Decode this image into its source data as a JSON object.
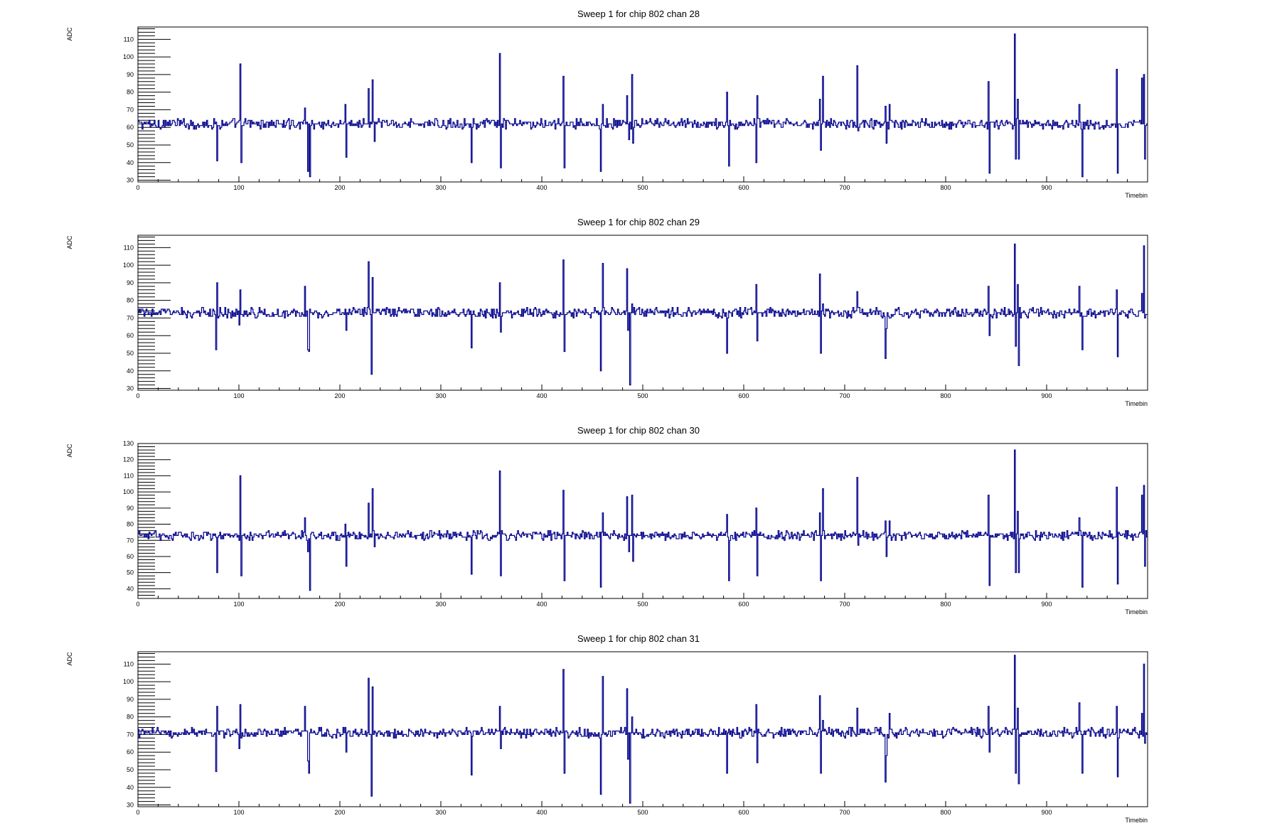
{
  "chart_data": [
    {
      "type": "line",
      "title": "Sweep 1 for chip 802 chan 28",
      "xlabel": "Timebin",
      "ylabel": "ADC",
      "xlim": [
        0,
        1000
      ],
      "ylim": [
        29,
        117
      ],
      "xticks": [
        0,
        100,
        200,
        300,
        400,
        500,
        600,
        700,
        800,
        900
      ],
      "yticks": [
        30,
        40,
        50,
        60,
        70,
        80,
        90,
        100,
        110
      ],
      "baseline": 62,
      "noise": 2.2,
      "spikes": [
        [
          78,
          41
        ],
        [
          101,
          96
        ],
        [
          102,
          40
        ],
        [
          165,
          71
        ],
        [
          168,
          35
        ],
        [
          170,
          32
        ],
        [
          205,
          73
        ],
        [
          206,
          43
        ],
        [
          228,
          82
        ],
        [
          232,
          87
        ],
        [
          234,
          52
        ],
        [
          330,
          40
        ],
        [
          358,
          102
        ],
        [
          359,
          37
        ],
        [
          421,
          89
        ],
        [
          422,
          37
        ],
        [
          458,
          35
        ],
        [
          460,
          73
        ],
        [
          484,
          78
        ],
        [
          486,
          53
        ],
        [
          489,
          90
        ],
        [
          490,
          51
        ],
        [
          583,
          80
        ],
        [
          585,
          38
        ],
        [
          612,
          40
        ],
        [
          613,
          78
        ],
        [
          675,
          76
        ],
        [
          676,
          47
        ],
        [
          678,
          89
        ],
        [
          712,
          95
        ],
        [
          713,
          58
        ],
        [
          740,
          72
        ],
        [
          741,
          51
        ],
        [
          744,
          73
        ],
        [
          842,
          86
        ],
        [
          843,
          34
        ],
        [
          868,
          113
        ],
        [
          869,
          42
        ],
        [
          871,
          76
        ],
        [
          872,
          42
        ],
        [
          932,
          73
        ],
        [
          935,
          32
        ],
        [
          969,
          93
        ],
        [
          970,
          34
        ],
        [
          994,
          88
        ],
        [
          996,
          90
        ],
        [
          997,
          42
        ]
      ],
      "grid": false,
      "legend": "none",
      "color": "#00008b"
    },
    {
      "type": "line",
      "title": "Sweep 1 for chip 802 chan 29",
      "xlabel": "Timebin",
      "ylabel": "ADC",
      "xlim": [
        0,
        1000
      ],
      "ylim": [
        29,
        117
      ],
      "xticks": [
        0,
        100,
        200,
        300,
        400,
        500,
        600,
        700,
        800,
        900
      ],
      "yticks": [
        30,
        40,
        50,
        60,
        70,
        80,
        90,
        100,
        110
      ],
      "baseline": 73,
      "noise": 2.2,
      "spikes": [
        [
          77,
          52
        ],
        [
          78,
          90
        ],
        [
          100,
          66
        ],
        [
          101,
          86
        ],
        [
          165,
          88
        ],
        [
          168,
          52
        ],
        [
          169,
          51
        ],
        [
          205,
          75
        ],
        [
          206,
          63
        ],
        [
          228,
          102
        ],
        [
          231,
          38
        ],
        [
          232,
          93
        ],
        [
          330,
          53
        ],
        [
          358,
          90
        ],
        [
          359,
          62
        ],
        [
          421,
          103
        ],
        [
          422,
          51
        ],
        [
          458,
          40
        ],
        [
          460,
          101
        ],
        [
          484,
          98
        ],
        [
          485,
          63
        ],
        [
          487,
          32
        ],
        [
          489,
          78
        ],
        [
          583,
          50
        ],
        [
          585,
          74
        ],
        [
          612,
          89
        ],
        [
          613,
          57
        ],
        [
          675,
          95
        ],
        [
          676,
          50
        ],
        [
          678,
          78
        ],
        [
          712,
          85
        ],
        [
          740,
          47
        ],
        [
          741,
          64
        ],
        [
          744,
          70
        ],
        [
          842,
          88
        ],
        [
          843,
          60
        ],
        [
          868,
          112
        ],
        [
          869,
          54
        ],
        [
          871,
          89
        ],
        [
          872,
          43
        ],
        [
          932,
          88
        ],
        [
          935,
          52
        ],
        [
          969,
          86
        ],
        [
          970,
          48
        ],
        [
          994,
          84
        ],
        [
          996,
          111
        ],
        [
          997,
          70
        ]
      ],
      "grid": false,
      "legend": "none",
      "color": "#00008b"
    },
    {
      "type": "line",
      "title": "Sweep 1 for chip 802 chan 30",
      "xlabel": "Timebin",
      "ylabel": "ADC",
      "xlim": [
        0,
        1000
      ],
      "ylim": [
        34,
        130
      ],
      "xticks": [
        0,
        100,
        200,
        300,
        400,
        500,
        600,
        700,
        800,
        900
      ],
      "yticks": [
        40,
        50,
        60,
        70,
        80,
        90,
        100,
        110,
        120,
        130
      ],
      "baseline": 73,
      "noise": 2.2,
      "spikes": [
        [
          78,
          50
        ],
        [
          101,
          110
        ],
        [
          102,
          48
        ],
        [
          165,
          84
        ],
        [
          168,
          63
        ],
        [
          170,
          39
        ],
        [
          205,
          80
        ],
        [
          206,
          54
        ],
        [
          228,
          93
        ],
        [
          232,
          102
        ],
        [
          234,
          66
        ],
        [
          330,
          49
        ],
        [
          358,
          113
        ],
        [
          359,
          48
        ],
        [
          421,
          101
        ],
        [
          422,
          45
        ],
        [
          458,
          41
        ],
        [
          460,
          87
        ],
        [
          484,
          97
        ],
        [
          486,
          63
        ],
        [
          489,
          98
        ],
        [
          490,
          57
        ],
        [
          583,
          86
        ],
        [
          585,
          45
        ],
        [
          612,
          90
        ],
        [
          613,
          48
        ],
        [
          675,
          87
        ],
        [
          676,
          45
        ],
        [
          678,
          102
        ],
        [
          712,
          109
        ],
        [
          713,
          67
        ],
        [
          740,
          82
        ],
        [
          741,
          60
        ],
        [
          744,
          82
        ],
        [
          842,
          98
        ],
        [
          843,
          42
        ],
        [
          868,
          126
        ],
        [
          869,
          50
        ],
        [
          871,
          88
        ],
        [
          872,
          50
        ],
        [
          932,
          84
        ],
        [
          935,
          41
        ],
        [
          969,
          103
        ],
        [
          970,
          43
        ],
        [
          994,
          98
        ],
        [
          996,
          104
        ],
        [
          997,
          54
        ]
      ],
      "grid": false,
      "legend": "none",
      "color": "#00008b"
    },
    {
      "type": "line",
      "title": "Sweep 1 for chip 802 chan 31",
      "xlabel": "Timebin",
      "ylabel": "ADC",
      "xlim": [
        0,
        1000
      ],
      "ylim": [
        29,
        117
      ],
      "xticks": [
        0,
        100,
        200,
        300,
        400,
        500,
        600,
        700,
        800,
        900
      ],
      "yticks": [
        30,
        40,
        50,
        60,
        70,
        80,
        90,
        100,
        110
      ],
      "baseline": 71,
      "noise": 2.2,
      "spikes": [
        [
          77,
          49
        ],
        [
          78,
          86
        ],
        [
          100,
          62
        ],
        [
          101,
          87
        ],
        [
          165,
          86
        ],
        [
          168,
          55
        ],
        [
          169,
          48
        ],
        [
          205,
          74
        ],
        [
          206,
          60
        ],
        [
          228,
          102
        ],
        [
          231,
          35
        ],
        [
          232,
          97
        ],
        [
          330,
          47
        ],
        [
          358,
          86
        ],
        [
          359,
          62
        ],
        [
          421,
          107
        ],
        [
          422,
          48
        ],
        [
          458,
          36
        ],
        [
          460,
          103
        ],
        [
          484,
          96
        ],
        [
          485,
          56
        ],
        [
          487,
          31
        ],
        [
          489,
          80
        ],
        [
          583,
          48
        ],
        [
          585,
          73
        ],
        [
          612,
          87
        ],
        [
          613,
          54
        ],
        [
          675,
          92
        ],
        [
          676,
          48
        ],
        [
          678,
          78
        ],
        [
          712,
          85
        ],
        [
          740,
          43
        ],
        [
          741,
          58
        ],
        [
          744,
          82
        ],
        [
          842,
          86
        ],
        [
          843,
          60
        ],
        [
          868,
          115
        ],
        [
          869,
          48
        ],
        [
          871,
          85
        ],
        [
          872,
          42
        ],
        [
          932,
          88
        ],
        [
          935,
          48
        ],
        [
          969,
          86
        ],
        [
          970,
          46
        ],
        [
          994,
          82
        ],
        [
          996,
          110
        ],
        [
          997,
          65
        ]
      ],
      "grid": false,
      "legend": "none",
      "color": "#00008b"
    }
  ]
}
